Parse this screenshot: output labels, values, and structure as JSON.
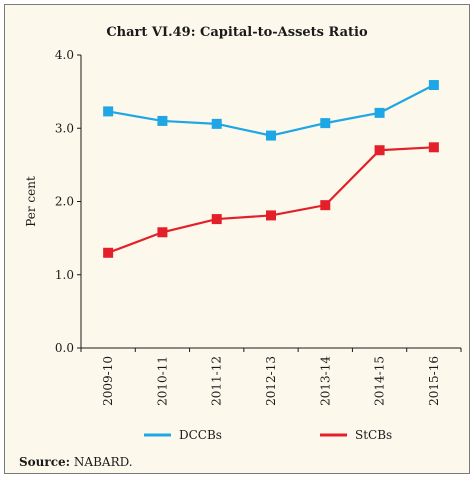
{
  "chart_data": {
    "type": "line",
    "title": "Chart VI.49: Capital-to-Assets Ratio",
    "ylabel": "Per cent",
    "xlabel": "",
    "ylim": [
      0,
      4
    ],
    "yticks": [
      "0.0",
      "1.0",
      "2.0",
      "3.0",
      "4.0"
    ],
    "categories": [
      "2009-10",
      "2010-11",
      "2011-12",
      "2012-13",
      "2013-14",
      "2014-15",
      "2015-16"
    ],
    "series": [
      {
        "name": "DCCBs",
        "color": "#1ea7e4",
        "values": [
          3.23,
          3.1,
          3.06,
          2.9,
          3.07,
          3.21,
          3.59
        ]
      },
      {
        "name": "StCBs",
        "color": "#e3202a",
        "values": [
          1.3,
          1.58,
          1.76,
          1.81,
          1.95,
          2.7,
          2.74
        ]
      }
    ],
    "legend": "bottom",
    "grid": false
  },
  "source": {
    "label": "Source:",
    "text": "NABARD."
  }
}
